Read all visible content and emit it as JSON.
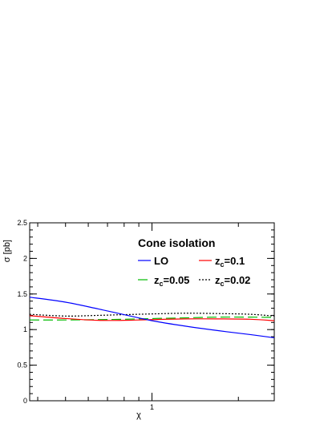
{
  "chart_data": {
    "type": "line",
    "xlabel": "χ",
    "ylabel": "σ [pb]",
    "xlim": [
      0.375,
      2.667
    ],
    "ylim": [
      0,
      2.5
    ],
    "x_scale": "log",
    "x_ticks": [
      {
        "value": 1,
        "label": "1"
      }
    ],
    "y_ticks": [
      {
        "value": 0,
        "label": "0"
      },
      {
        "value": 0.5,
        "label": "0.5"
      },
      {
        "value": 1,
        "label": "1"
      },
      {
        "value": 1.5,
        "label": "1.5"
      },
      {
        "value": 2,
        "label": "2"
      },
      {
        "value": 2.5,
        "label": "2.5"
      }
    ],
    "legend_title": "Cone isolation",
    "legend_position": "top-right",
    "series": [
      {
        "name": "LO",
        "color": "#0000ff",
        "dash": "solid",
        "x": [
          0.375,
          0.5,
          0.65,
          0.8,
          1.0,
          1.3,
          1.7,
          2.2,
          2.667
        ],
        "y": [
          1.455,
          1.385,
          1.29,
          1.21,
          1.125,
          1.05,
          0.985,
          0.93,
          0.885
        ]
      },
      {
        "name": "z_c=0.1",
        "color": "#ff0000",
        "dash": "solid",
        "x": [
          0.375,
          0.5,
          0.65,
          0.8,
          1.0,
          1.3,
          1.7,
          2.2,
          2.667
        ],
        "y": [
          1.195,
          1.155,
          1.13,
          1.13,
          1.14,
          1.15,
          1.15,
          1.145,
          1.125
        ]
      },
      {
        "name": "z_c=0.05",
        "color": "#00bb00",
        "dash": "long-dash",
        "x": [
          0.375,
          0.5,
          0.65,
          0.8,
          1.0,
          1.3,
          1.7,
          2.2,
          2.667
        ],
        "y": [
          1.135,
          1.135,
          1.14,
          1.145,
          1.155,
          1.165,
          1.175,
          1.175,
          1.17
        ]
      },
      {
        "name": "z_c=0.02",
        "color": "#000000",
        "dash": "dotted",
        "x": [
          0.375,
          0.5,
          0.65,
          0.8,
          1.0,
          1.3,
          1.7,
          2.2,
          2.667
        ],
        "y": [
          1.215,
          1.19,
          1.2,
          1.21,
          1.22,
          1.23,
          1.225,
          1.215,
          1.19
        ]
      }
    ]
  },
  "legend": {
    "header": "Cone isolation",
    "items": [
      {
        "main": "LO",
        "sub": ""
      },
      {
        "main": "z",
        "sub": "c",
        "rest": "=0.1"
      },
      {
        "main": "z",
        "sub": "c",
        "rest": "=0.05"
      },
      {
        "main": "z",
        "sub": "c",
        "rest": "=0.02"
      }
    ]
  }
}
